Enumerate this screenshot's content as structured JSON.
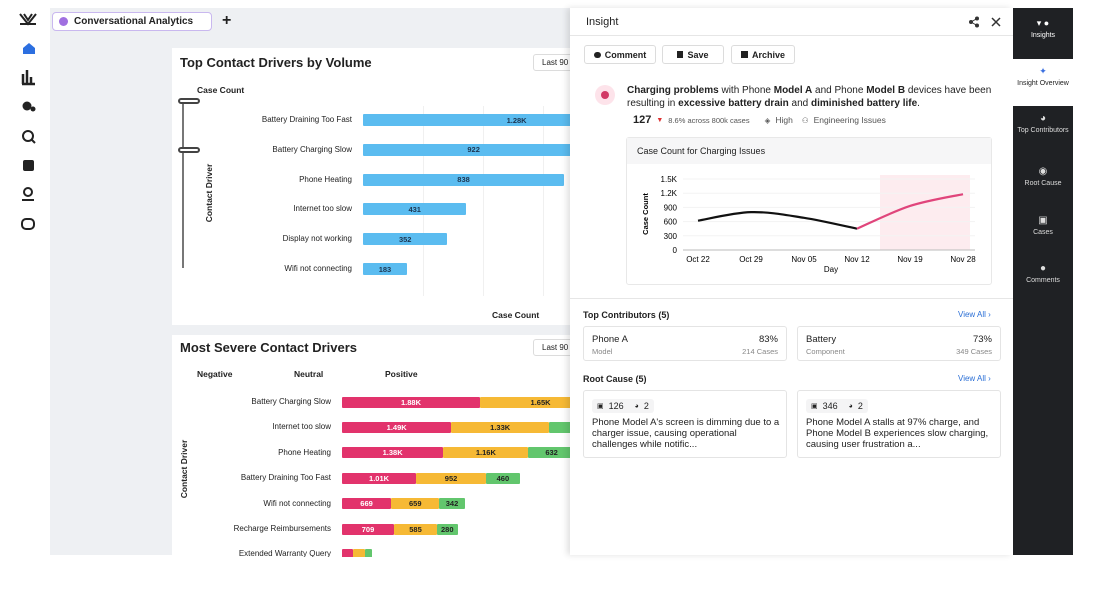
{
  "tab": {
    "title": "Conversational Analytics"
  },
  "volume_card": {
    "title": "Top Contact Drivers by Volume",
    "filter": "Last 90",
    "top_label": "Case Count",
    "y_label": "Contact Driver",
    "x_label": "Case Count",
    "color": "#5bbcf0",
    "rows": [
      {
        "label": "Battery Draining Too Fast",
        "value": 1280,
        "value_label": "1.28K"
      },
      {
        "label": "Battery Charging Slow",
        "value": 922
      },
      {
        "label": "Phone Heating",
        "value": 838
      },
      {
        "label": "Internet too slow",
        "value": 431
      },
      {
        "label": "Display not working",
        "value": 352
      },
      {
        "label": "Wifi not connecting",
        "value": 183
      }
    ]
  },
  "severity_card": {
    "title": "Most Severe Contact Drivers",
    "filter": "Last 90",
    "y_label": "Contact Driver",
    "legend": [
      "Negative",
      "Neutral",
      "Positive"
    ],
    "colors": [
      "#e2336c",
      "#f6b935",
      "#62c66d"
    ],
    "rows": [
      {
        "label": "Battery Charging Slow",
        "values": [
          1880,
          1650
        ],
        "value_labels": [
          "1.88K",
          "1.65K"
        ]
      },
      {
        "label": "Internet too slow",
        "values": [
          1490,
          1330,
          300
        ],
        "value_labels": [
          "1.49K",
          "1.33K",
          null
        ]
      },
      {
        "label": "Phone Heating",
        "values": [
          1380,
          1160,
          632
        ],
        "value_labels": [
          "1.38K",
          "1.16K",
          "632"
        ]
      },
      {
        "label": "Battery Draining Too Fast",
        "values": [
          1010,
          952,
          460
        ],
        "value_labels": [
          "1.01K",
          "952",
          "460"
        ]
      },
      {
        "label": "Wifi not connecting",
        "values": [
          669,
          659,
          342
        ],
        "value_labels": [
          "669",
          "659",
          "342"
        ]
      },
      {
        "label": "Recharge Reimbursements",
        "values": [
          709,
          585,
          280
        ],
        "value_labels": [
          "709",
          "585",
          "280"
        ]
      },
      {
        "label": "Extended Warranty Query",
        "values": [
          150,
          160,
          100
        ],
        "value_labels": [
          null,
          null,
          null
        ]
      }
    ]
  },
  "insight": {
    "title": "Insight",
    "actions": [
      "Comment",
      "Save",
      "Archive"
    ],
    "summary": [
      {
        "text": "Charging problems",
        "bold": true
      },
      {
        "text": " with Phone ",
        "bold": false
      },
      {
        "text": "Model A",
        "bold": true
      },
      {
        "text": " and Phone ",
        "bold": false
      },
      {
        "text": "Model B",
        "bold": true
      },
      {
        "text": " devices have been resulting in ",
        "bold": false
      },
      {
        "text": "excessive battery drain",
        "bold": true
      },
      {
        "text": " and ",
        "bold": false
      },
      {
        "text": "diminished battery life",
        "bold": true
      },
      {
        "text": ".",
        "bold": false
      }
    ],
    "stats": {
      "count": "127",
      "change": "8.6% across 800k cases",
      "priority": "High",
      "category": "Engineering Issues"
    },
    "chart": {
      "type": "line",
      "title": "Case Count for Charging Issues",
      "y_label": "Case Count",
      "x_label": "Day",
      "categories": [
        "Oct 22",
        "Oct 29",
        "Nov 05",
        "Nov 12",
        "Nov 19",
        "Nov 28"
      ],
      "ylim": [
        0,
        1500
      ],
      "yticks": [
        0,
        300,
        600,
        900,
        {
          "value": 1200,
          "label": "1.2K"
        },
        {
          "value": 1500,
          "label": "1.5K"
        }
      ],
      "series": [
        {
          "color": "#111111",
          "values": [
            620,
            800,
            680,
            450,
            null,
            null
          ]
        },
        {
          "color": "#e0457b",
          "values": [
            null,
            null,
            null,
            450,
            930,
            1180
          ]
        }
      ]
    },
    "contributors": {
      "title": "Top Contributors (5)",
      "link": "View All",
      "items": [
        {
          "name": "Phone A",
          "percent": "83%",
          "type": "Model",
          "cases": "214 Cases"
        },
        {
          "name": "Battery",
          "percent": "73%",
          "type": "Component",
          "cases": "349 Cases"
        }
      ]
    },
    "root_cause": {
      "title": "Root Cause (5)",
      "link": "View All",
      "items": [
        {
          "cases": "126",
          "comments": "2",
          "text": "Phone Model A's screen is dimming due to a charger issue, causing operational challenges while notific..."
        },
        {
          "cases": "346",
          "comments": "2",
          "text": "Phone Model A stalls at 97% charge, and Phone Model B experiences slow charging, causing user frustration a..."
        }
      ]
    }
  },
  "nav": [
    "Insights",
    "Insight Overview",
    "Top Contributors",
    "Root Cause",
    "Cases",
    "Comments"
  ]
}
